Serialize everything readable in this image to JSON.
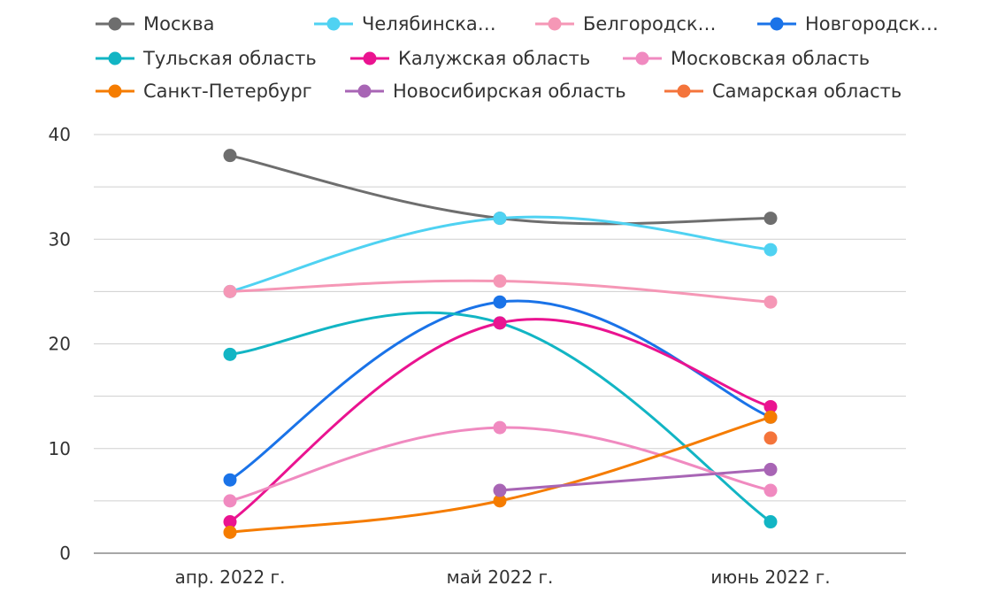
{
  "chart_data": {
    "type": "line",
    "categories": [
      "апр. 2022 г.",
      "май 2022 г.",
      "июнь 2022 г."
    ],
    "ylim": [
      0,
      40
    ],
    "y_ticks": [
      0,
      10,
      20,
      30,
      40
    ],
    "grid": true,
    "legend_position": "top",
    "series": [
      {
        "name": "Москва",
        "legend_label": "Москва",
        "color": "#6e6e6e",
        "values": [
          38,
          32,
          32
        ]
      },
      {
        "name": "Челябинская область",
        "legend_label": "Челябинска…",
        "color": "#4fd2f2",
        "values": [
          25,
          32,
          29
        ]
      },
      {
        "name": "Белгородская область",
        "legend_label": "Белгородск…",
        "color": "#f597b6",
        "values": [
          25,
          26,
          24
        ]
      },
      {
        "name": "Новгородская область",
        "legend_label": "Новгородск…",
        "color": "#1a73e8",
        "values": [
          7,
          24,
          13
        ]
      },
      {
        "name": "Тульская область",
        "legend_label": "Тульская область",
        "color": "#12b5c4",
        "values": [
          19,
          22,
          3
        ]
      },
      {
        "name": "Калужская область",
        "legend_label": "Калужская область",
        "color": "#ea1390",
        "values": [
          3,
          22,
          14
        ]
      },
      {
        "name": "Московская область",
        "legend_label": "Московская область",
        "color": "#f08ac0",
        "values": [
          5,
          12,
          6
        ]
      },
      {
        "name": "Санкт-Петербург",
        "legend_label": "Санкт-Петербург",
        "color": "#f57c00",
        "values": [
          2,
          5,
          13
        ]
      },
      {
        "name": "Новосибирская область",
        "legend_label": "Новосибирская область",
        "color": "#a865b5",
        "values": [
          null,
          6,
          8
        ]
      },
      {
        "name": "Самарская область",
        "legend_label": "Самарская область",
        "color": "#f4743b",
        "values": [
          null,
          null,
          11
        ]
      }
    ]
  }
}
